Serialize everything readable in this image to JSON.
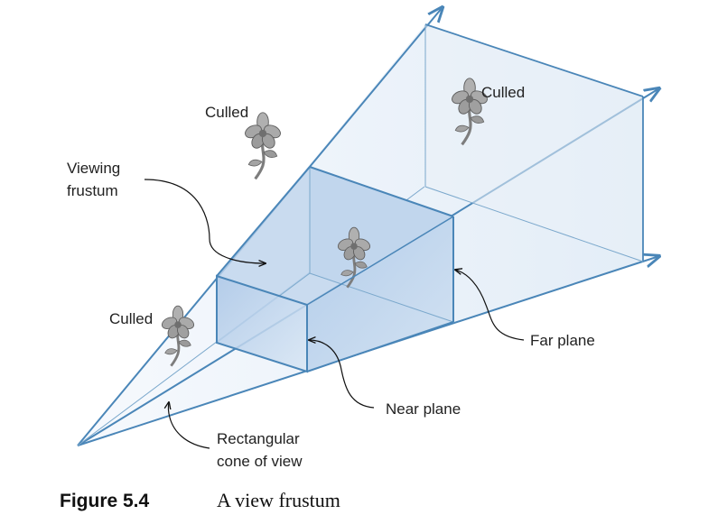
{
  "labels": {
    "culled_top": "Culled",
    "culled_right": "Culled",
    "culled_left": "Culled",
    "viewing_frustum_line1": "Viewing",
    "viewing_frustum_line2": "frustum",
    "far_plane": "Far plane",
    "near_plane": "Near plane",
    "cone_line1": "Rectangular",
    "cone_line2": "cone of view"
  },
  "caption": {
    "number": "Figure 5.4",
    "text": "A view frustum"
  },
  "colors": {
    "edge": "#4a86b8",
    "cone_fill": "#eef4fb",
    "frustum_fill": "#c2d6ee",
    "flower": "#8d8d8d"
  }
}
